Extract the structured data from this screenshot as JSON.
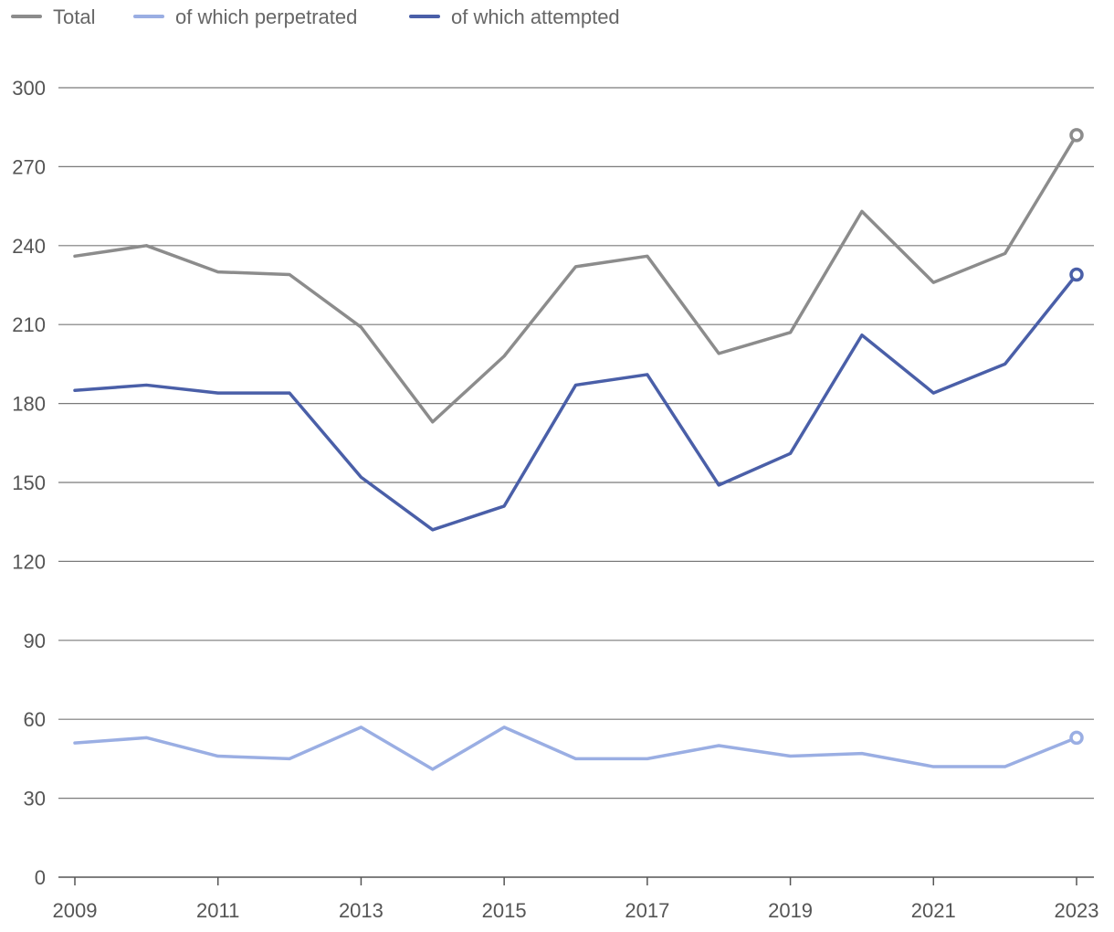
{
  "chart_data": {
    "type": "line",
    "title": "",
    "xlabel": "",
    "ylabel": "",
    "x": [
      2009,
      2010,
      2011,
      2012,
      2013,
      2014,
      2015,
      2016,
      2017,
      2018,
      2019,
      2020,
      2021,
      2022,
      2023
    ],
    "x_tick_labels": [
      "2009",
      "2011",
      "2013",
      "2015",
      "2017",
      "2019",
      "2021",
      "2023"
    ],
    "x_tick_values": [
      2009,
      2011,
      2013,
      2015,
      2017,
      2019,
      2021,
      2023
    ],
    "ylim": [
      0,
      300
    ],
    "y_ticks": [
      0,
      30,
      60,
      90,
      120,
      150,
      180,
      210,
      240,
      270,
      300
    ],
    "grid": true,
    "legend_position": "top-left",
    "series": [
      {
        "name": "Total",
        "color": "#8c8c8c",
        "values": [
          236,
          240,
          230,
          229,
          209,
          173,
          198,
          232,
          236,
          199,
          207,
          253,
          226,
          237,
          282
        ]
      },
      {
        "name": "of which perpetrated",
        "color": "#9aaee3",
        "values": [
          51,
          53,
          46,
          45,
          57,
          41,
          57,
          45,
          45,
          50,
          46,
          47,
          42,
          42,
          53
        ]
      },
      {
        "name": "of which attempted",
        "color": "#4a5fa8",
        "values": [
          185,
          187,
          184,
          184,
          152,
          132,
          141,
          187,
          191,
          149,
          161,
          206,
          184,
          195,
          229
        ]
      }
    ]
  }
}
